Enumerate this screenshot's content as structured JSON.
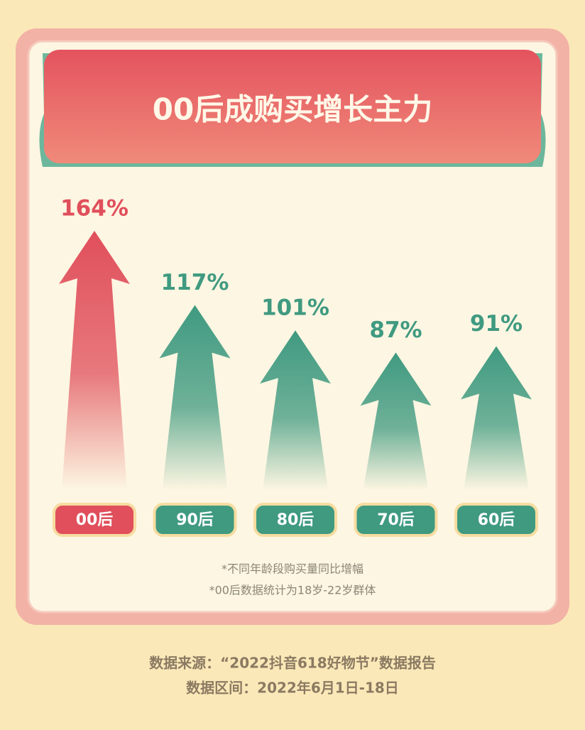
{
  "chart_data": {
    "type": "arrow-bar",
    "title": "00后成购买增长主力",
    "categories": [
      "00后",
      "90后",
      "80后",
      "70后",
      "60后"
    ],
    "values": [
      164,
      117,
      101,
      87,
      91
    ],
    "value_labels": [
      "164%",
      "117%",
      "101%",
      "87%",
      "91%"
    ],
    "colors": [
      "#e04f5b",
      "#3f9a80",
      "#3f9a80",
      "#3f9a80",
      "#3f9a80"
    ],
    "notes": [
      "*不同年龄段购买量同比增幅",
      "*00后数据统计为18岁-22岁群体"
    ]
  },
  "footer": [
    "数据来源：“2022抖音618好物节”数据报告",
    "数据区间：2022年6月1日-18日"
  ]
}
